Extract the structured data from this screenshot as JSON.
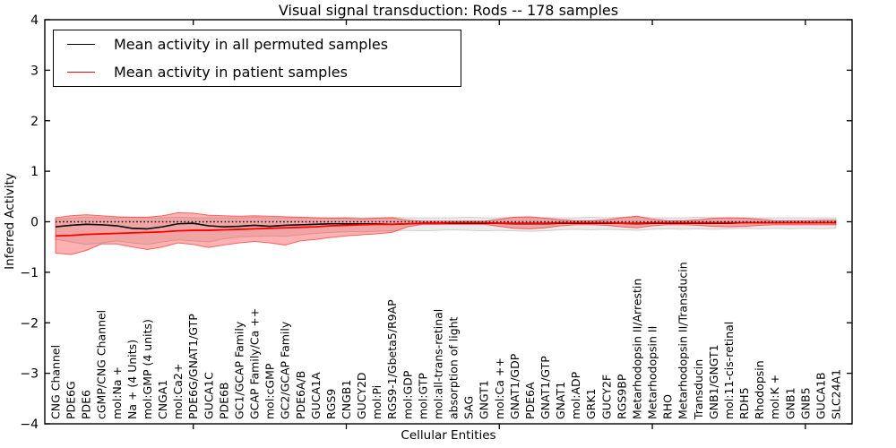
{
  "figure": {
    "title": "Visual signal transduction: Rods -- 178 samples",
    "xlabel": "Cellular Entities",
    "ylabel": "Inferred Activity"
  },
  "legend": {
    "entries": [
      {
        "label": "Mean activity in all permuted samples",
        "color": "#000000"
      },
      {
        "label": "Mean activity in patient samples",
        "color": "#ff0000"
      }
    ]
  },
  "chart_data": {
    "type": "line",
    "title": "Visual signal transduction: Rods -- 178 samples",
    "xlabel": "Cellular Entities",
    "ylabel": "Inferred Activity",
    "ylim": [
      -4,
      4
    ],
    "ytick_labels": [
      "4",
      "3",
      "2",
      "1",
      "0",
      "−1",
      "−2",
      "−3",
      "−4"
    ],
    "ytick_values": [
      4,
      3,
      2,
      1,
      0,
      -1,
      -2,
      -3,
      -4
    ],
    "xtick_major_values": [
      10,
      20,
      30,
      40,
      50
    ],
    "grid": false,
    "legend_position": "upper-left",
    "background_color": "#ffffff",
    "axes_color": "#000000",
    "categories": [
      "CNG Channel",
      "PDE6G",
      "PDE6",
      "cGMP/CNG Channel",
      "mol:Na +",
      "Na + (4 Units)",
      "mol:GMP (4 units)",
      "CNGA1",
      "mol:Ca2+",
      "PDE6G/GNAT1/GTP",
      "GUCA1C",
      "PDE6B",
      "GC1/GCAP Family",
      "GCAP Family/Ca ++",
      "mol:cGMP",
      "GC2/GCAP Family",
      "PDE6A/B",
      "GUCA1A",
      "RGS9",
      "CNGB1",
      "GUCY2D",
      "mol:Pi",
      "RGS9-1/Gbeta5/R9AP",
      "mol:GDP",
      "mol:GTP",
      "mol:all-trans-retinal",
      "absorption of light",
      "SAG",
      "GNGT1",
      "mol:Ca ++",
      "GNAT1/GDP",
      "PDE6A",
      "GNAT1/GTP",
      "GNAT1",
      "mol:ADP",
      "GRK1",
      "GUCY2F",
      "RGS9BP",
      "Metarhodopsin II/Arrestin",
      "Metarhodopsin II",
      "RHO",
      "Metarhodopsin II/Transducin",
      "Transducin",
      "GNB1/GNGT1",
      "mol:11-cis-retinal",
      "RDH5",
      "Rhodopsin",
      "mol:K +",
      "GNB1",
      "GNB5",
      "GUCA1B",
      "SLC24A1"
    ],
    "reference_line": {
      "y": 0,
      "style": "dotted",
      "color": "#000000"
    },
    "series": [
      {
        "name": "Mean activity in all permuted samples",
        "color": "#000000",
        "style": "solid",
        "values": [
          -0.1,
          -0.07,
          -0.05,
          -0.06,
          -0.08,
          -0.13,
          -0.14,
          -0.1,
          -0.04,
          -0.03,
          -0.08,
          -0.1,
          -0.09,
          -0.07,
          -0.09,
          -0.07,
          -0.06,
          -0.05,
          -0.04,
          -0.04,
          -0.04,
          -0.04,
          -0.05,
          -0.04,
          -0.03,
          -0.03,
          -0.03,
          -0.03,
          -0.03,
          -0.03,
          -0.04,
          -0.04,
          -0.04,
          -0.03,
          -0.03,
          -0.03,
          -0.03,
          -0.03,
          -0.04,
          -0.03,
          -0.03,
          -0.03,
          -0.03,
          -0.03,
          -0.03,
          -0.02,
          -0.02,
          -0.02,
          -0.02,
          -0.02,
          -0.02,
          -0.02
        ]
      },
      {
        "name": "Mean activity in patient samples",
        "color": "#ff0000",
        "style": "solid",
        "values": [
          -0.28,
          -0.27,
          -0.25,
          -0.24,
          -0.23,
          -0.22,
          -0.21,
          -0.2,
          -0.18,
          -0.17,
          -0.17,
          -0.16,
          -0.15,
          -0.14,
          -0.13,
          -0.12,
          -0.11,
          -0.1,
          -0.08,
          -0.07,
          -0.06,
          -0.05,
          -0.05,
          -0.04,
          -0.03,
          -0.03,
          -0.02,
          -0.02,
          -0.02,
          -0.03,
          -0.03,
          -0.03,
          -0.03,
          -0.02,
          -0.02,
          -0.02,
          -0.02,
          -0.03,
          -0.03,
          -0.02,
          -0.02,
          -0.02,
          -0.02,
          -0.02,
          -0.02,
          -0.02,
          -0.02,
          -0.02,
          -0.02,
          -0.02,
          -0.02,
          -0.02
        ]
      }
    ],
    "bands": [
      {
        "name": "permuted samples range",
        "fill": "rgba(0,0,0,0.08)",
        "edge": "rgba(0,0,0,0.15)",
        "upper": [
          0.05,
          0.07,
          0.09,
          0.08,
          0.08,
          0.09,
          0.08,
          0.08,
          0.09,
          0.08,
          0.08,
          0.08,
          0.08,
          0.09,
          0.08,
          0.08,
          0.08,
          0.08,
          0.08,
          0.09,
          0.08,
          0.08,
          0.09,
          0.08,
          0.08,
          0.08,
          0.08,
          0.09,
          0.08,
          0.08,
          0.09,
          0.08,
          0.08,
          0.08,
          0.08,
          0.09,
          0.08,
          0.09,
          0.1,
          0.08,
          0.08,
          0.08,
          0.09,
          0.08,
          0.08,
          0.08,
          0.08,
          0.08,
          0.08,
          0.08,
          0.08,
          0.08
        ],
        "lower": [
          -0.35,
          -0.4,
          -0.45,
          -0.42,
          -0.38,
          -0.42,
          -0.45,
          -0.4,
          -0.36,
          -0.38,
          -0.4,
          -0.34,
          -0.3,
          -0.29,
          -0.28,
          -0.29,
          -0.26,
          -0.23,
          -0.21,
          -0.2,
          -0.2,
          -0.19,
          -0.18,
          -0.17,
          -0.18,
          -0.17,
          -0.16,
          -0.17,
          -0.18,
          -0.17,
          -0.18,
          -0.19,
          -0.18,
          -0.16,
          -0.15,
          -0.16,
          -0.15,
          -0.16,
          -0.17,
          -0.15,
          -0.14,
          -0.15,
          -0.14,
          -0.15,
          -0.14,
          -0.13,
          -0.14,
          -0.13,
          -0.14,
          -0.13,
          -0.14,
          -0.13
        ]
      },
      {
        "name": "patient samples range",
        "fill": "rgba(255,0,0,0.30)",
        "edge": "rgba(255,0,0,0.55)",
        "upper": [
          0.08,
          0.12,
          0.14,
          0.12,
          0.1,
          0.09,
          0.09,
          0.12,
          0.18,
          0.17,
          0.13,
          0.12,
          0.11,
          0.12,
          0.11,
          0.1,
          0.09,
          0.08,
          0.07,
          0.07,
          0.06,
          0.07,
          0.08,
          0.03,
          0.01,
          0.01,
          0.01,
          0.01,
          0.01,
          0.05,
          0.09,
          0.1,
          0.07,
          0.04,
          0.02,
          0.02,
          0.04,
          0.08,
          0.11,
          0.05,
          0.02,
          0.02,
          0.04,
          0.07,
          0.08,
          0.07,
          0.05,
          0.02,
          0.02,
          0.02,
          0.03,
          0.03
        ],
        "lower": [
          -0.62,
          -0.65,
          -0.57,
          -0.44,
          -0.44,
          -0.5,
          -0.55,
          -0.5,
          -0.42,
          -0.45,
          -0.51,
          -0.46,
          -0.42,
          -0.39,
          -0.42,
          -0.46,
          -0.38,
          -0.35,
          -0.31,
          -0.28,
          -0.26,
          -0.24,
          -0.21,
          -0.1,
          -0.05,
          -0.05,
          -0.05,
          -0.05,
          -0.05,
          -0.09,
          -0.13,
          -0.14,
          -0.12,
          -0.08,
          -0.06,
          -0.06,
          -0.07,
          -0.1,
          -0.12,
          -0.08,
          -0.06,
          -0.06,
          -0.07,
          -0.09,
          -0.1,
          -0.09,
          -0.07,
          -0.06,
          -0.06,
          -0.06,
          -0.06,
          -0.06
        ]
      }
    ]
  }
}
